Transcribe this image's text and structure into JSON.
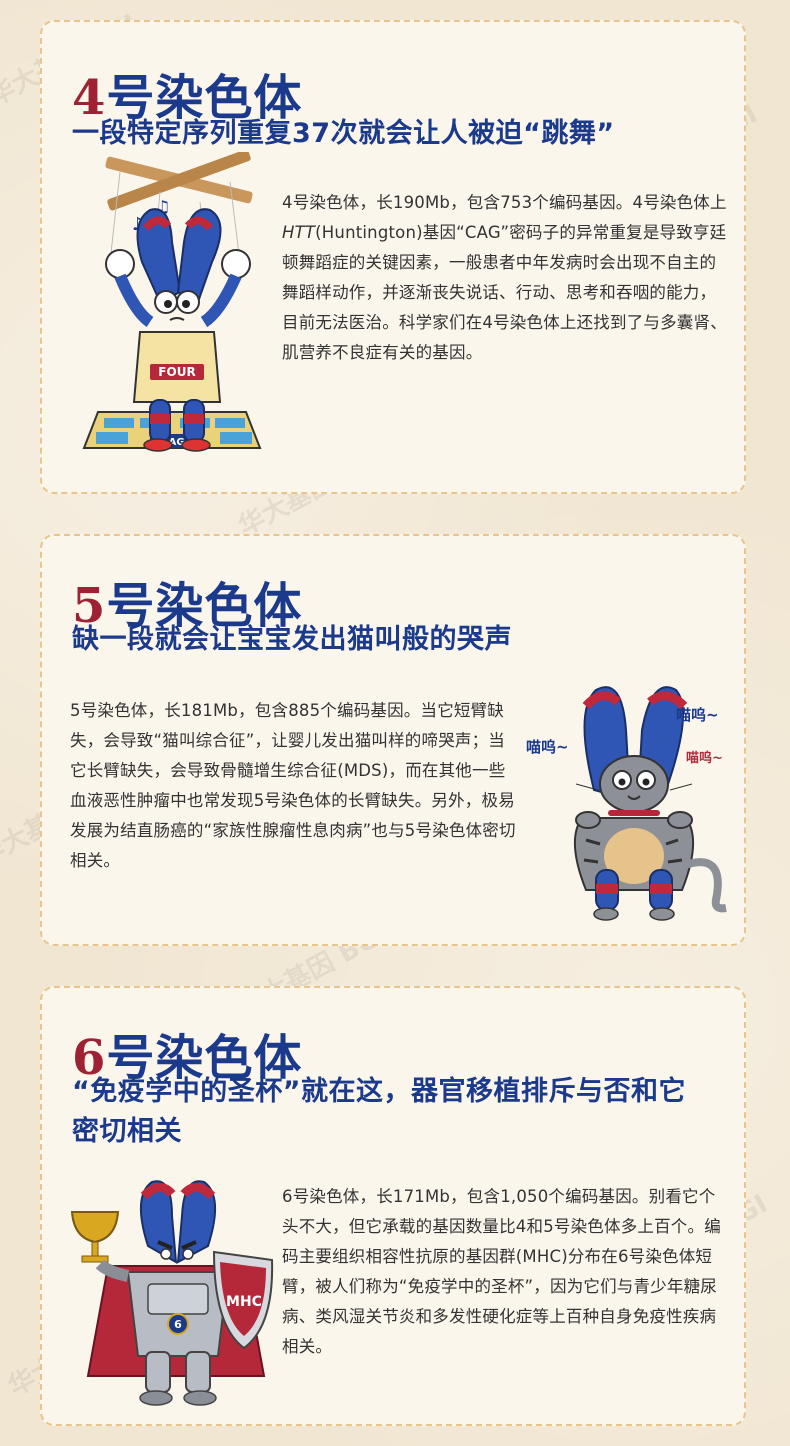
{
  "watermark": "华大基因 BGI",
  "sections": [
    {
      "number": "4",
      "title_suffix": "号染色体",
      "subtitle": "一段特定序列重复37次就会让人被迫“跳舞”",
      "body_pre": "4号染色体，长190Mb，包含753个编码基因。4号染色体上",
      "body_gene": "HTT",
      "body_post": "(Huntington)基因“CAG”密码子的异常重复是导致亨廷顿舞蹈症的关键因素，一般患者中年发病时会出现不自主的舞蹈样动作，并逐渐丧失说话、行动、思考和吞咽的能力，目前无法医治。科学家们在4号染色体上还找到了与多囊肾、肌营养不良症有关的基因。",
      "shirt_label": "FOUR",
      "mat_label": "CAG"
    },
    {
      "number": "5",
      "title_suffix": "号染色体",
      "subtitle": "缺一段就会让宝宝发出猫叫般的哭声",
      "body": "5号染色体，长181Mb，包含885个编码基因。当它短臂缺失，会导致“猫叫综合征”，让婴儿发出猫叫样的啼哭声；当它长臂缺失，会导致骨髓增生综合征(MDS)，而在其他一些血液恶性肿瘤中也常发现5号染色体的长臂缺失。另外，极易发展为结直肠癌的“家族性腺瘤性息肉病”也与5号染色体密切相关。",
      "meow_1": "喵呜~",
      "meow_2": "喵呜~",
      "meow_3": "喵呜~",
      "tag_label": "5"
    },
    {
      "number": "6",
      "title_suffix": "号染色体",
      "subtitle": "“免疫学中的圣杯”就在这，器官移植排斥与否和它密切相关",
      "body": "6号染色体，长171Mb，包含1,050个编码基因。别看它个头不大，但它承载的基因数量比4和5号染色体多上百个。编码主要组织相容性抗原的基因群(MHC)分布在6号染色体短臂，被人们称为“免疫学中的圣杯”，因为它们与青少年糖尿病、类风湿关节炎和多发性硬化症等上百种自身免疫性疾病相关。",
      "shield_label": "MHC",
      "badge_label": "6"
    }
  ],
  "colors": {
    "title_blue": "#1b3a8c",
    "number_red": "#9e2234",
    "card_border": "#e8c58a",
    "card_bg": "#fbf6ec"
  }
}
